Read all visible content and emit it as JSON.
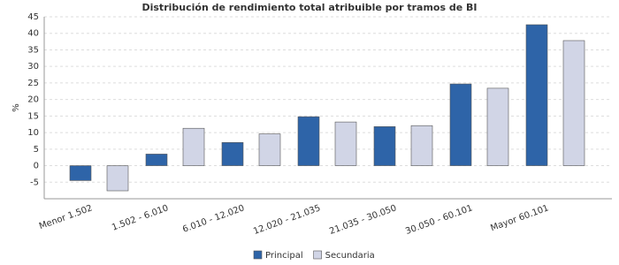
{
  "chart_data": {
    "type": "bar",
    "title": "Distribución de rendimiento total atribuible por tramos de BI",
    "y_label": "%",
    "categories": [
      "Menor 1.502",
      "1.502 - 6.010",
      "6.010 - 12.020",
      "12.020 - 21.035",
      "21.035 - 30.050",
      "30.050 - 60.101",
      "Mayor 60.101"
    ],
    "series": [
      {
        "name": "Principal",
        "color": "#2e64a8",
        "values": [
          -4.5,
          3.5,
          7,
          14.8,
          11.8,
          24.7,
          42.6
        ]
      },
      {
        "name": "Secundaria",
        "color": "#d1d5e6",
        "values": [
          -7.6,
          11.3,
          9.6,
          13.2,
          12.1,
          23.4,
          37.8
        ]
      }
    ],
    "ylim": [
      -10,
      45
    ],
    "yticks": [
      -5,
      0,
      5,
      10,
      15,
      20,
      25,
      30,
      35,
      40,
      45
    ],
    "grid": true,
    "legend": "bottom"
  }
}
